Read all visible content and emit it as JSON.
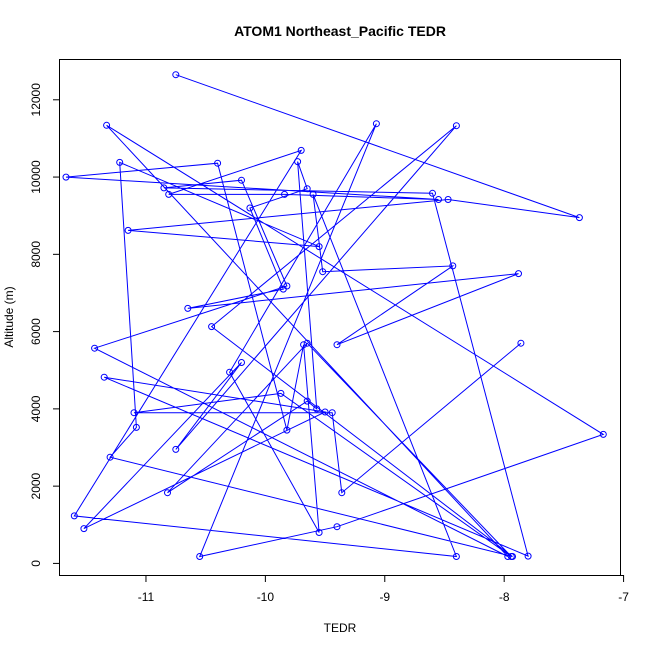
{
  "chart_data": {
    "type": "line",
    "title": "ATOM1 Northeast_Pacific TEDR",
    "xlabel": "TEDR",
    "ylabel": "Altitude (m)",
    "xlim": [
      -11.72,
      -7.03
    ],
    "ylim": [
      -300,
      13030
    ],
    "x_ticks": [
      -11,
      -10,
      -9,
      -8,
      -7
    ],
    "x_tick_labels": [
      "-11",
      "-10",
      "-9",
      "-8",
      "-7"
    ],
    "y_ticks": [
      0,
      2000,
      4000,
      6000,
      8000,
      10000,
      12000
    ],
    "y_tick_labels": [
      "0",
      "2000",
      "4000",
      "6000",
      "8000",
      "10000",
      "12000"
    ],
    "grid": false,
    "series_color": "#0000ff",
    "series": [
      {
        "x": [
          -10.75,
          -7.37,
          -8.47,
          -11.15,
          -9.55,
          -11.22,
          -11.08,
          -11.3,
          -7.93,
          -10.45,
          -8.4,
          -10.75,
          -10.2,
          -11.52,
          -9.5,
          -11.35,
          -7.8,
          -8.6,
          -10.85,
          -10.2,
          -9.82,
          -11.43,
          -7.97,
          -11.33,
          -7.17,
          -9.4,
          -10.55,
          -9.07,
          -10.3,
          -9.55,
          -9.68,
          -9.82,
          -10.4,
          -11.67,
          -8.55,
          -9.84,
          -10.81,
          -9.7,
          -11.6,
          -8.4,
          -9.6,
          -9.52,
          -8.43,
          -9.4,
          -7.88,
          -10.65,
          -9.85,
          -10.13,
          -9.65,
          -9.73,
          -9.57,
          -9.65,
          -10.82,
          -9.65,
          -7.94,
          -9.87,
          -11.1,
          -9.44,
          -9.36,
          -7.86
        ],
        "y": [
          12650,
          8950,
          9420,
          8620,
          8200,
          10380,
          3520,
          2750,
          180,
          6130,
          11330,
          2950,
          5200,
          900,
          3920,
          4820,
          190,
          9580,
          9720,
          9920,
          7180,
          5570,
          180,
          11340,
          3340,
          950,
          180,
          11380,
          4950,
          800,
          5660,
          3450,
          10360,
          10000,
          9420,
          9550,
          9550,
          10690,
          1230,
          180,
          9550,
          7550,
          7700,
          5660,
          7500,
          6600,
          7100,
          9200,
          9700,
          10400,
          4000,
          4200,
          1830,
          5700,
          180,
          4400,
          3900,
          3900,
          1830,
          5700
        ]
      }
    ]
  }
}
